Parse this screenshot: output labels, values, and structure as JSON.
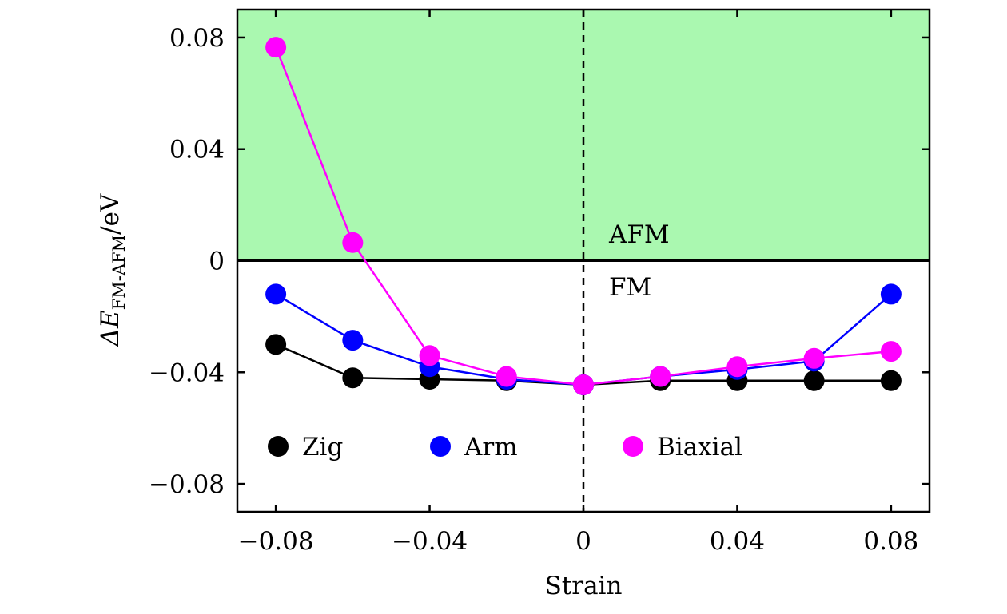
{
  "chart_data": {
    "type": "line",
    "xlabel": "Strain",
    "ylabel": {
      "main": "ΔE",
      "subscript": "FM-AFM",
      "unit": "/eV"
    },
    "xlim": [
      -0.09,
      0.09
    ],
    "ylim": [
      -0.09,
      0.09
    ],
    "x_ticks": [
      -0.08,
      -0.04,
      0,
      0.04,
      0.08
    ],
    "x_tick_labels": [
      "−0.08",
      "−0.04",
      "0",
      "0.04",
      "0.08"
    ],
    "y_ticks": [
      -0.08,
      -0.04,
      0,
      0.04,
      0.08
    ],
    "y_tick_labels": [
      "−0.08",
      "−0.04",
      "0",
      "0.04",
      "0.08"
    ],
    "x": [
      -0.08,
      -0.06,
      -0.04,
      -0.02,
      0,
      0.02,
      0.04,
      0.06,
      0.08
    ],
    "series": [
      {
        "name": "Zig",
        "color": "#000000",
        "values": [
          -0.03,
          -0.042,
          -0.0425,
          -0.043,
          -0.0445,
          -0.043,
          -0.043,
          -0.043,
          -0.043
        ]
      },
      {
        "name": "Arm",
        "color": "#0000ff",
        "values": [
          -0.012,
          -0.0285,
          -0.038,
          -0.0425,
          -0.0445,
          -0.0415,
          -0.039,
          -0.036,
          -0.012
        ]
      },
      {
        "name": "Biaxial",
        "color": "#ff00ff",
        "values": [
          0.0765,
          0.0065,
          -0.034,
          -0.0415,
          -0.0445,
          -0.0415,
          -0.038,
          -0.035,
          -0.0325
        ]
      }
    ],
    "region_labels": {
      "upper": "AFM",
      "lower": "FM"
    },
    "shaded_region": {
      "from_y": 0,
      "color": "#aaf8b0"
    },
    "vertical_reference_x": 0,
    "legend_placement": "bottom",
    "grid": false
  }
}
